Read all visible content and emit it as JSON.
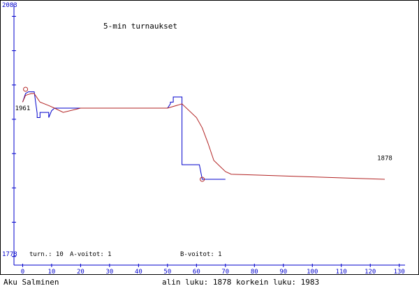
{
  "chart_data": {
    "type": "line",
    "title": "5-min turnaukset",
    "y_top_label": "2083",
    "y_bottom_label": "1778",
    "ylim": [
      1778,
      2083
    ],
    "xlim": [
      -3,
      132
    ],
    "x_ticks": [
      0,
      10,
      20,
      30,
      40,
      50,
      60,
      70,
      80,
      90,
      100,
      110,
      120,
      130
    ],
    "y_ticks": [
      1788,
      1828,
      1868,
      1908,
      1948,
      1988,
      2028,
      2068
    ],
    "annotations": [
      {
        "text": "1961",
        "x": 0,
        "y": 1961
      },
      {
        "text": "1878",
        "x": 125,
        "y": 1903
      }
    ],
    "markers": [
      {
        "name": "max",
        "x": 1,
        "y": 1983
      },
      {
        "name": "min",
        "x": 62,
        "y": 1878
      }
    ],
    "series": [
      {
        "name": "",
        "color": "#0000cc",
        "points": [
          [
            0,
            1968
          ],
          [
            1,
            1978
          ],
          [
            2,
            1980
          ],
          [
            3,
            1980
          ],
          [
            4,
            1980
          ],
          [
            5,
            1955
          ],
          [
            5,
            1950
          ],
          [
            6,
            1950
          ],
          [
            6,
            1956
          ],
          [
            9,
            1956
          ],
          [
            9,
            1950
          ],
          [
            10,
            1958
          ],
          [
            11,
            1961
          ],
          [
            12,
            1961
          ],
          [
            20,
            1961
          ],
          [
            50,
            1961
          ],
          [
            51,
            1966
          ],
          [
            51,
            1968
          ],
          [
            52,
            1968
          ],
          [
            52,
            1974
          ],
          [
            55,
            1974
          ],
          [
            55,
            1956
          ],
          [
            55,
            1895
          ],
          [
            56,
            1895
          ],
          [
            58,
            1895
          ],
          [
            61,
            1895
          ],
          [
            62,
            1878
          ],
          [
            70,
            1878
          ]
        ]
      },
      {
        "name": "",
        "color": "#b22222",
        "points": [
          [
            0,
            1968
          ],
          [
            1,
            1976
          ],
          [
            2,
            1977
          ],
          [
            3,
            1978
          ],
          [
            4,
            1978
          ],
          [
            6,
            1968
          ],
          [
            9,
            1964
          ],
          [
            11,
            1961
          ],
          [
            14,
            1956
          ],
          [
            20,
            1961
          ],
          [
            50,
            1961
          ],
          [
            55,
            1966
          ],
          [
            60,
            1950
          ],
          [
            62,
            1938
          ],
          [
            64,
            1920
          ],
          [
            66,
            1900
          ],
          [
            70,
            1887
          ],
          [
            72,
            1884
          ],
          [
            125,
            1878
          ]
        ]
      }
    ]
  },
  "footer": {
    "stats_turnaukset": "turn.: 10",
    "stats_a_voitot": "A-voitot: 1",
    "stats_b_voitot": "B-voitot: 1",
    "player_name": "Aku Salminen",
    "min_max": "alin luku: 1878  korkein luku: 1983"
  },
  "colors": {
    "axis": "#0000cc",
    "text": "#000000",
    "frame": "#000000"
  }
}
